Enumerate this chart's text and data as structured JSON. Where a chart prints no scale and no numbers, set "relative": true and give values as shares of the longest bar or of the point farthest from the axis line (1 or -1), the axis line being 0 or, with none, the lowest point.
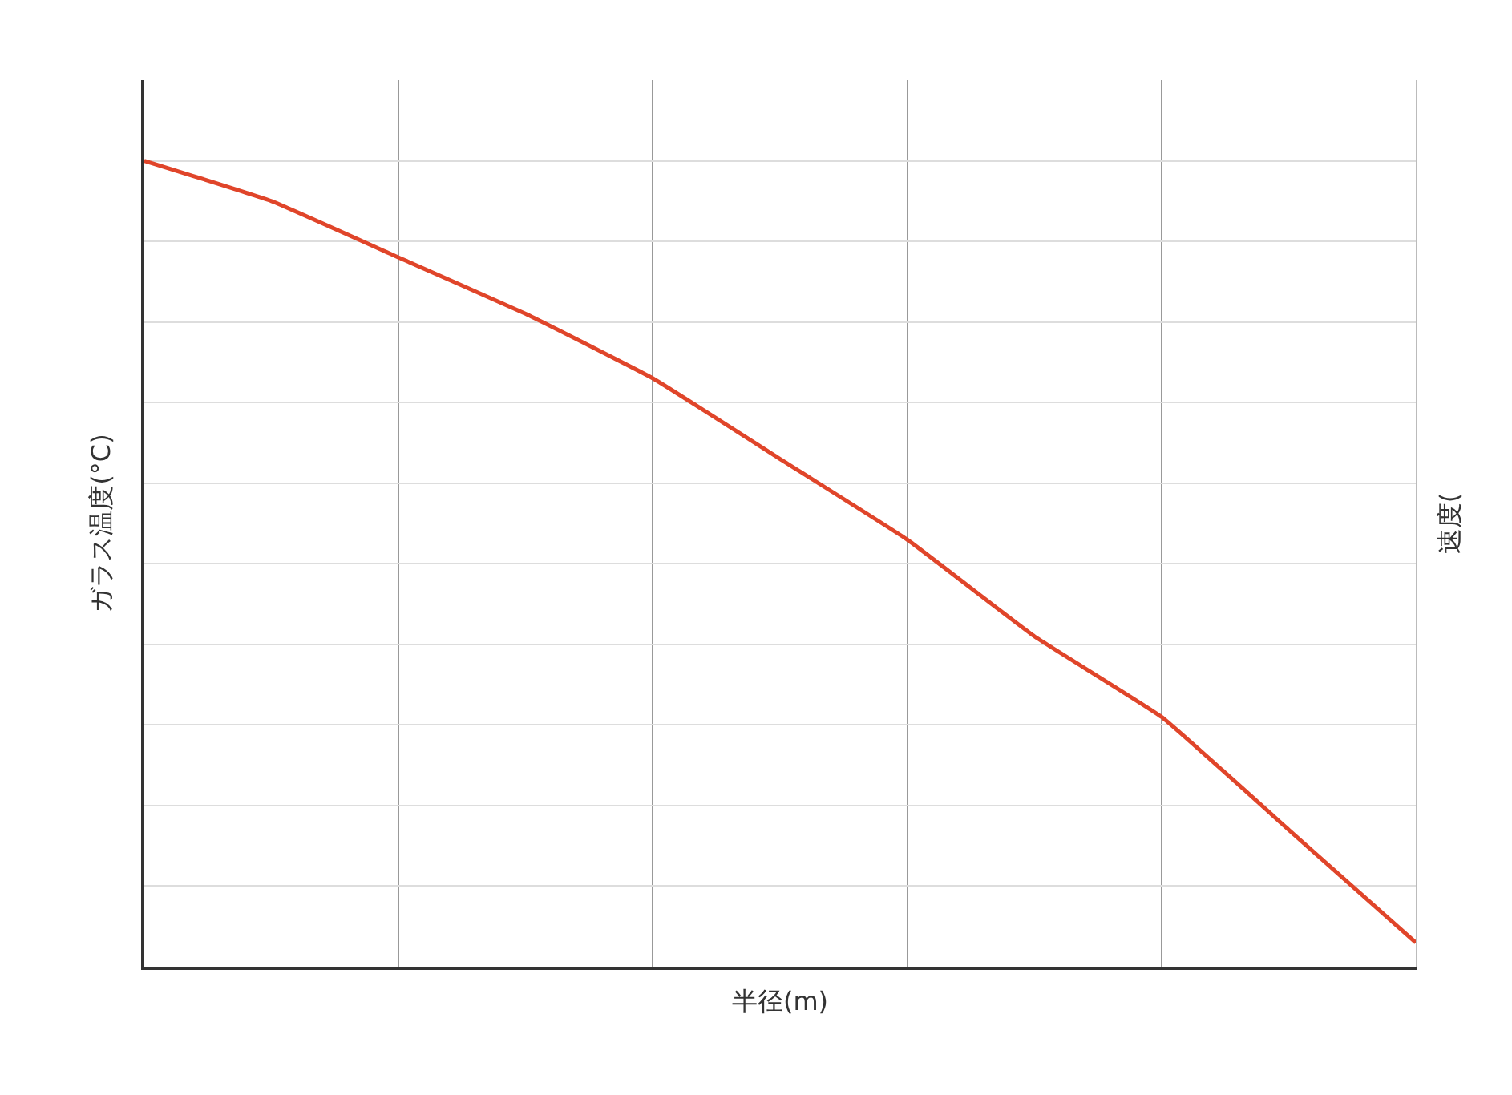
{
  "chart_data": {
    "type": "line",
    "relative": true,
    "xlabel": "半径(m)",
    "ylabel": "ガラス温度(°C)",
    "y2label": "速度(",
    "categories": [
      null,
      null,
      null,
      null,
      null,
      null,
      null,
      null,
      null,
      null,
      null
    ],
    "series": [
      {
        "color": "#e0452a",
        "values": [
          1,
          0.95,
          0.88,
          0.81,
          0.73,
          0.63,
          0.53,
          0.41,
          0.31,
          0.17,
          0.03
        ]
      }
    ],
    "grid": true,
    "tick_labels": false
  }
}
